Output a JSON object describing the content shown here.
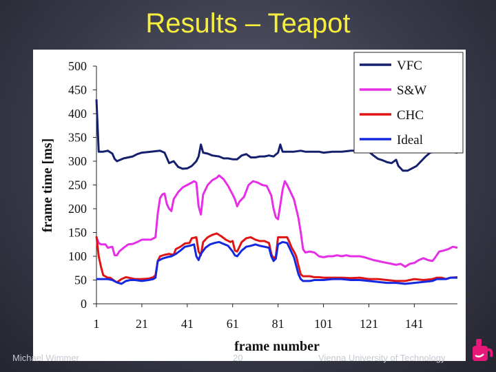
{
  "slide": {
    "title": "Results – Teapot",
    "footer_author": "Michael Wimmer",
    "footer_page": "20",
    "footer_org": "Vienna University of Technology",
    "title_color": "#f6ee3c"
  },
  "logo_icon": "teapot-logo-icon",
  "chart_data": {
    "type": "line",
    "title": "",
    "xlabel": "frame number",
    "ylabel": "frame time [ms]",
    "xlim": [
      1,
      160
    ],
    "ylim": [
      0,
      500
    ],
    "x_ticks": [
      1,
      21,
      41,
      61,
      81,
      101,
      121,
      141
    ],
    "y_ticks": [
      0,
      50,
      100,
      150,
      200,
      250,
      300,
      350,
      400,
      450,
      500
    ],
    "grid": false,
    "legend": "top-right",
    "series": [
      {
        "name": "VFC",
        "color": "#14206e",
        "points": [
          [
            1,
            430
          ],
          [
            2,
            320
          ],
          [
            4,
            320
          ],
          [
            6,
            322
          ],
          [
            8,
            316
          ],
          [
            9,
            305
          ],
          [
            10,
            300
          ],
          [
            11,
            302
          ],
          [
            13,
            306
          ],
          [
            15,
            308
          ],
          [
            17,
            310
          ],
          [
            19,
            315
          ],
          [
            21,
            318
          ],
          [
            25,
            320
          ],
          [
            29,
            322
          ],
          [
            31,
            318
          ],
          [
            33,
            296
          ],
          [
            35,
            300
          ],
          [
            37,
            288
          ],
          [
            39,
            284
          ],
          [
            41,
            285
          ],
          [
            43,
            290
          ],
          [
            45,
            300
          ],
          [
            46,
            310
          ],
          [
            47,
            335
          ],
          [
            48,
            318
          ],
          [
            50,
            316
          ],
          [
            52,
            312
          ],
          [
            55,
            310
          ],
          [
            57,
            306
          ],
          [
            59,
            306
          ],
          [
            61,
            304
          ],
          [
            63,
            304
          ],
          [
            65,
            312
          ],
          [
            67,
            315
          ],
          [
            69,
            308
          ],
          [
            71,
            308
          ],
          [
            73,
            310
          ],
          [
            75,
            310
          ],
          [
            77,
            312
          ],
          [
            79,
            310
          ],
          [
            81,
            318
          ],
          [
            82,
            335
          ],
          [
            83,
            320
          ],
          [
            85,
            320
          ],
          [
            88,
            320
          ],
          [
            91,
            322
          ],
          [
            93,
            320
          ],
          [
            95,
            320
          ],
          [
            99,
            320
          ],
          [
            101,
            318
          ],
          [
            105,
            320
          ],
          [
            109,
            320
          ],
          [
            113,
            322
          ],
          [
            117,
            322
          ],
          [
            121,
            320
          ],
          [
            123,
            312
          ],
          [
            125,
            305
          ],
          [
            127,
            302
          ],
          [
            129,
            298
          ],
          [
            131,
            296
          ],
          [
            133,
            303
          ],
          [
            134,
            290
          ],
          [
            136,
            280
          ],
          [
            138,
            280
          ],
          [
            140,
            285
          ],
          [
            142,
            290
          ],
          [
            144,
            300
          ],
          [
            146,
            310
          ],
          [
            148,
            318
          ],
          [
            150,
            320
          ],
          [
            153,
            320
          ],
          [
            157,
            320
          ],
          [
            160,
            318
          ]
        ]
      },
      {
        "name": "S&W",
        "color": "#e62ee6",
        "points": [
          [
            1,
            140
          ],
          [
            2,
            128
          ],
          [
            3,
            125
          ],
          [
            5,
            125
          ],
          [
            6,
            118
          ],
          [
            8,
            120
          ],
          [
            9,
            102
          ],
          [
            10,
            102
          ],
          [
            11,
            110
          ],
          [
            13,
            118
          ],
          [
            15,
            125
          ],
          [
            17,
            126
          ],
          [
            19,
            130
          ],
          [
            21,
            135
          ],
          [
            25,
            135
          ],
          [
            27,
            140
          ],
          [
            28,
            190
          ],
          [
            29,
            222
          ],
          [
            30,
            230
          ],
          [
            31,
            232
          ],
          [
            32,
            210
          ],
          [
            33,
            200
          ],
          [
            34,
            195
          ],
          [
            35,
            220
          ],
          [
            37,
            235
          ],
          [
            39,
            245
          ],
          [
            41,
            250
          ],
          [
            43,
            255
          ],
          [
            44,
            258
          ],
          [
            45,
            255
          ],
          [
            46,
            205
          ],
          [
            47,
            188
          ],
          [
            48,
            230
          ],
          [
            50,
            250
          ],
          [
            52,
            260
          ],
          [
            54,
            265
          ],
          [
            55,
            270
          ],
          [
            57,
            262
          ],
          [
            59,
            248
          ],
          [
            61,
            230
          ],
          [
            62,
            220
          ],
          [
            63,
            205
          ],
          [
            64,
            215
          ],
          [
            66,
            225
          ],
          [
            68,
            250
          ],
          [
            70,
            258
          ],
          [
            72,
            255
          ],
          [
            74,
            250
          ],
          [
            76,
            248
          ],
          [
            78,
            228
          ],
          [
            79,
            200
          ],
          [
            80,
            182
          ],
          [
            81,
            178
          ],
          [
            82,
            208
          ],
          [
            83,
            240
          ],
          [
            84,
            258
          ],
          [
            85,
            250
          ],
          [
            86,
            240
          ],
          [
            87,
            230
          ],
          [
            88,
            220
          ],
          [
            89,
            200
          ],
          [
            90,
            180
          ],
          [
            91,
            150
          ],
          [
            92,
            115
          ],
          [
            93,
            108
          ],
          [
            95,
            110
          ],
          [
            97,
            108
          ],
          [
            99,
            100
          ],
          [
            101,
            98
          ],
          [
            103,
            100
          ],
          [
            105,
            100
          ],
          [
            107,
            102
          ],
          [
            109,
            100
          ],
          [
            111,
            102
          ],
          [
            113,
            100
          ],
          [
            115,
            100
          ],
          [
            117,
            100
          ],
          [
            119,
            98
          ],
          [
            121,
            95
          ],
          [
            123,
            92
          ],
          [
            125,
            90
          ],
          [
            127,
            88
          ],
          [
            129,
            86
          ],
          [
            131,
            84
          ],
          [
            133,
            82
          ],
          [
            135,
            84
          ],
          [
            137,
            78
          ],
          [
            139,
            84
          ],
          [
            141,
            86
          ],
          [
            143,
            92
          ],
          [
            145,
            96
          ],
          [
            147,
            92
          ],
          [
            149,
            90
          ],
          [
            150,
            96
          ],
          [
            152,
            110
          ],
          [
            154,
            112
          ],
          [
            156,
            115
          ],
          [
            158,
            120
          ],
          [
            160,
            118
          ]
        ]
      },
      {
        "name": "CHC",
        "color": "#e01414",
        "points": [
          [
            1,
            142
          ],
          [
            2,
            100
          ],
          [
            3,
            78
          ],
          [
            4,
            60
          ],
          [
            6,
            55
          ],
          [
            7,
            55
          ],
          [
            9,
            48
          ],
          [
            10,
            45
          ],
          [
            12,
            52
          ],
          [
            14,
            56
          ],
          [
            16,
            54
          ],
          [
            18,
            52
          ],
          [
            21,
            52
          ],
          [
            24,
            53
          ],
          [
            26,
            56
          ],
          [
            27,
            60
          ],
          [
            28,
            90
          ],
          [
            29,
            100
          ],
          [
            31,
            103
          ],
          [
            33,
            105
          ],
          [
            35,
            103
          ],
          [
            36,
            115
          ],
          [
            38,
            120
          ],
          [
            40,
            127
          ],
          [
            42,
            128
          ],
          [
            43,
            138
          ],
          [
            45,
            140
          ],
          [
            46,
            110
          ],
          [
            47,
            102
          ],
          [
            48,
            130
          ],
          [
            50,
            140
          ],
          [
            52,
            145
          ],
          [
            54,
            148
          ],
          [
            56,
            142
          ],
          [
            58,
            135
          ],
          [
            60,
            130
          ],
          [
            61,
            132
          ],
          [
            62,
            112
          ],
          [
            63,
            110
          ],
          [
            65,
            130
          ],
          [
            67,
            138
          ],
          [
            69,
            140
          ],
          [
            71,
            135
          ],
          [
            73,
            132
          ],
          [
            75,
            132
          ],
          [
            77,
            128
          ],
          [
            78,
            105
          ],
          [
            79,
            95
          ],
          [
            80,
            100
          ],
          [
            81,
            140
          ],
          [
            83,
            140
          ],
          [
            85,
            140
          ],
          [
            86,
            130
          ],
          [
            87,
            118
          ],
          [
            88,
            110
          ],
          [
            89,
            100
          ],
          [
            90,
            80
          ],
          [
            91,
            62
          ],
          [
            92,
            58
          ],
          [
            95,
            58
          ],
          [
            97,
            56
          ],
          [
            99,
            56
          ],
          [
            101,
            55
          ],
          [
            105,
            55
          ],
          [
            109,
            55
          ],
          [
            113,
            54
          ],
          [
            117,
            55
          ],
          [
            121,
            52
          ],
          [
            125,
            52
          ],
          [
            129,
            50
          ],
          [
            133,
            48
          ],
          [
            137,
            48
          ],
          [
            141,
            52
          ],
          [
            145,
            50
          ],
          [
            149,
            52
          ],
          [
            151,
            55
          ],
          [
            153,
            55
          ],
          [
            155,
            52
          ],
          [
            157,
            55
          ],
          [
            160,
            56
          ]
        ]
      },
      {
        "name": "Ideal",
        "color": "#1428e0",
        "points": [
          [
            1,
            52
          ],
          [
            2,
            52
          ],
          [
            4,
            52
          ],
          [
            6,
            52
          ],
          [
            8,
            50
          ],
          [
            10,
            45
          ],
          [
            12,
            42
          ],
          [
            14,
            48
          ],
          [
            16,
            50
          ],
          [
            18,
            50
          ],
          [
            21,
            48
          ],
          [
            24,
            50
          ],
          [
            26,
            52
          ],
          [
            27,
            55
          ],
          [
            28,
            90
          ],
          [
            30,
            95
          ],
          [
            32,
            98
          ],
          [
            34,
            100
          ],
          [
            36,
            105
          ],
          [
            38,
            112
          ],
          [
            40,
            120
          ],
          [
            42,
            122
          ],
          [
            44,
            125
          ],
          [
            45,
            100
          ],
          [
            46,
            92
          ],
          [
            47,
            105
          ],
          [
            49,
            118
          ],
          [
            51,
            125
          ],
          [
            53,
            128
          ],
          [
            55,
            130
          ],
          [
            57,
            126
          ],
          [
            59,
            122
          ],
          [
            61,
            110
          ],
          [
            62,
            102
          ],
          [
            63,
            100
          ],
          [
            65,
            112
          ],
          [
            67,
            120
          ],
          [
            69,
            122
          ],
          [
            71,
            125
          ],
          [
            73,
            122
          ],
          [
            75,
            120
          ],
          [
            77,
            118
          ],
          [
            78,
            100
          ],
          [
            79,
            90
          ],
          [
            80,
            95
          ],
          [
            81,
            125
          ],
          [
            83,
            130
          ],
          [
            85,
            128
          ],
          [
            86,
            118
          ],
          [
            87,
            108
          ],
          [
            88,
            98
          ],
          [
            89,
            80
          ],
          [
            90,
            62
          ],
          [
            91,
            52
          ],
          [
            92,
            48
          ],
          [
            95,
            48
          ],
          [
            97,
            50
          ],
          [
            99,
            50
          ],
          [
            101,
            50
          ],
          [
            105,
            52
          ],
          [
            109,
            52
          ],
          [
            113,
            50
          ],
          [
            117,
            50
          ],
          [
            121,
            48
          ],
          [
            125,
            46
          ],
          [
            129,
            44
          ],
          [
            133,
            44
          ],
          [
            137,
            42
          ],
          [
            141,
            44
          ],
          [
            145,
            46
          ],
          [
            149,
            48
          ],
          [
            151,
            52
          ],
          [
            153,
            52
          ],
          [
            155,
            52
          ],
          [
            157,
            55
          ],
          [
            160,
            55
          ]
        ]
      }
    ]
  }
}
